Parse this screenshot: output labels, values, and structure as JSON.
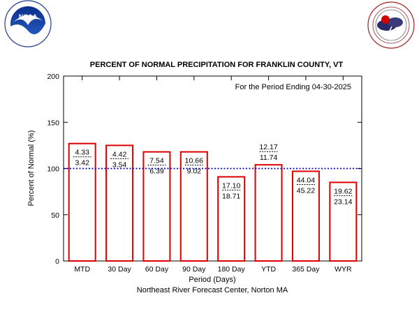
{
  "chart_data": {
    "type": "bar",
    "title": "PERCENT OF NORMAL PRECIPITATION FOR FRANKLIN COUNTY, VT",
    "annotation": "For the Period Ending 04-30-2025",
    "xlabel": "Period (Days)",
    "ylabel": "Percent of Normal (%)",
    "credit": "Northeast River Forecast Center, Norton MA",
    "categories": [
      "MTD",
      "30 Day",
      "60 Day",
      "90 Day",
      "180 Day",
      "YTD",
      "365 Day",
      "WYR"
    ],
    "values": [
      127,
      125,
      118,
      118,
      91,
      104,
      97,
      85
    ],
    "observed": [
      "4.33",
      "4.42",
      "7.54",
      "10.66",
      "17.10",
      "12.17",
      "44.04",
      "19.62"
    ],
    "normal": [
      "3.42",
      "3.54",
      "6.39",
      "9.02",
      "18.71",
      "11.74",
      "45.22",
      "23.14"
    ],
    "reference_line": 100,
    "ylim": [
      0,
      200
    ],
    "yticks": [
      0,
      50,
      100,
      150,
      200
    ],
    "grid": false,
    "colors": {
      "bar": "#dd0000",
      "reference": "#0000cc",
      "axis": "#000000"
    }
  },
  "logos": {
    "left": {
      "icon": "noaa-logo-icon",
      "text": "NOAA",
      "ring": "NATIONAL OCEANIC AND ATMOSPHERIC ADMINISTRATION · U.S. DEPARTMENT OF COMMERCE"
    },
    "right": {
      "icon": "nws-logo-icon",
      "ring": "NATIONAL WEATHER SERVICE"
    }
  }
}
